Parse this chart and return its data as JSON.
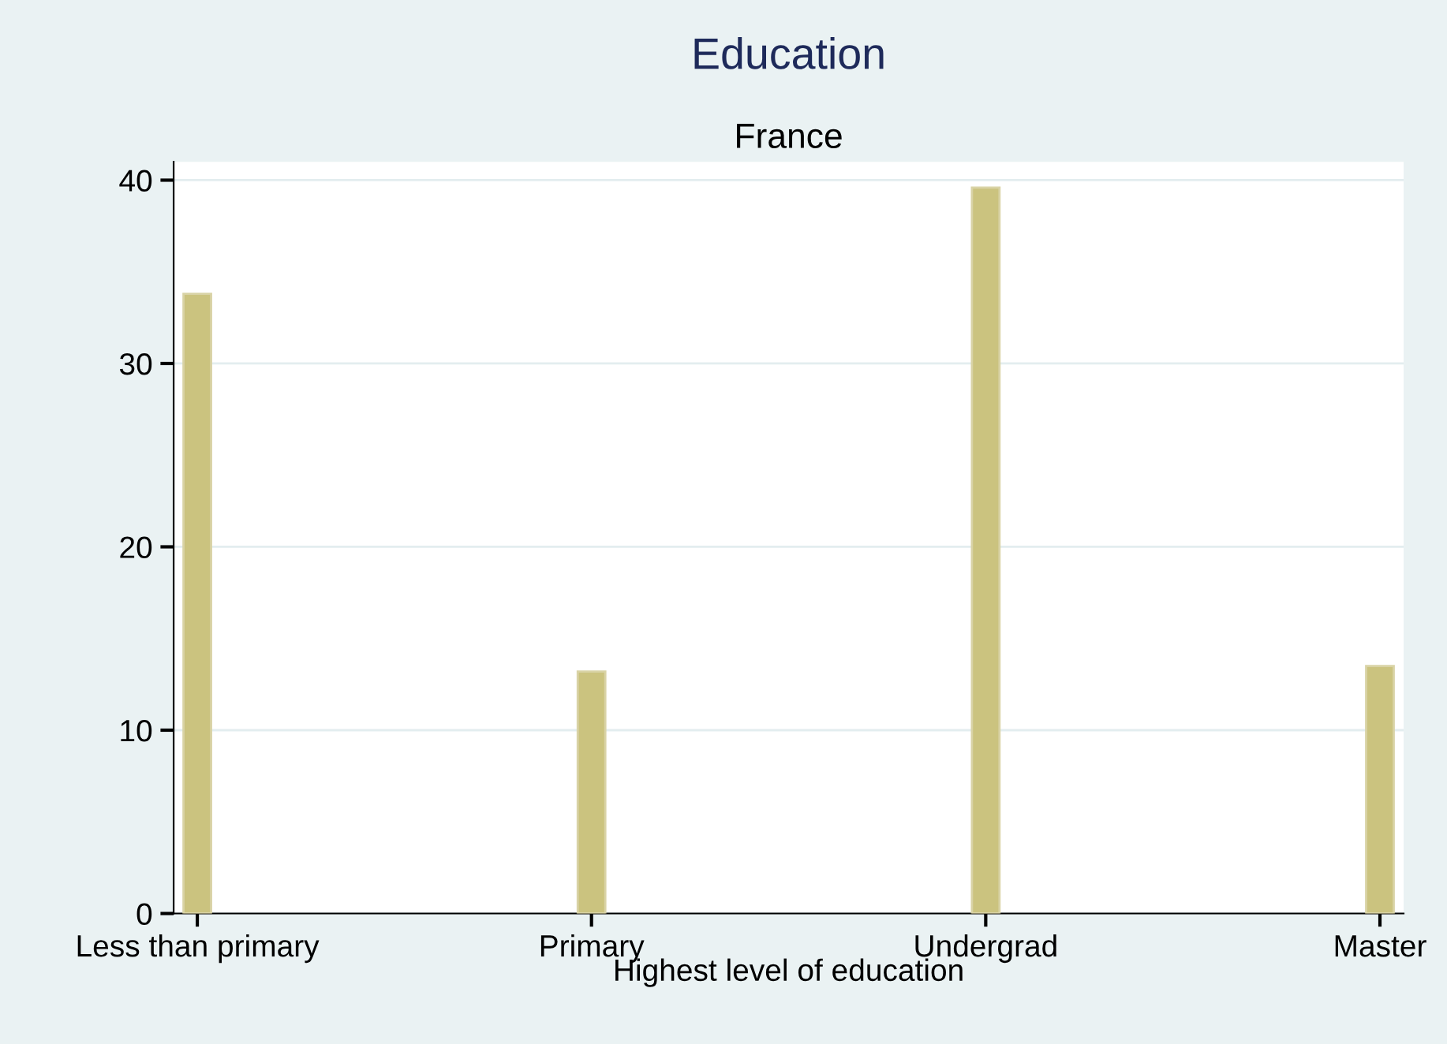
{
  "chart_data": {
    "type": "bar",
    "title": "Education",
    "subtitle": "France",
    "xlabel": "Highest level of education",
    "categories": [
      "Less than primary",
      "Primary",
      "Undergrad",
      "Master"
    ],
    "values": [
      33.8,
      13.2,
      39.6,
      13.5
    ],
    "color": "#cbc37f",
    "ylim": [
      0,
      41
    ],
    "yticks": [
      0,
      10,
      20,
      30,
      40
    ],
    "grid": "y"
  }
}
